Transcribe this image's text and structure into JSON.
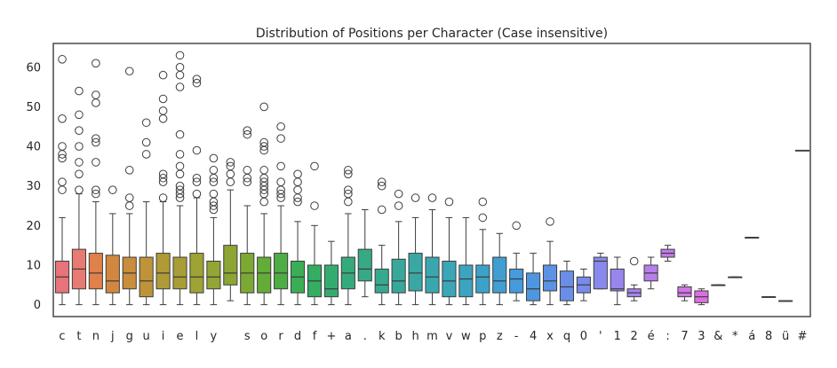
{
  "chart_data": {
    "type": "box",
    "title": "Distribution of Positions per Character (Case insensitive)",
    "xlabel": "",
    "ylabel": "",
    "ylim": [
      -3,
      66
    ],
    "yticks": [
      0,
      10,
      20,
      30,
      40,
      50,
      60
    ],
    "grid": false,
    "legend": "none",
    "categories": [
      "c",
      "t",
      "n",
      "j",
      "g",
      "u",
      "i",
      "e",
      "l",
      "y",
      " ",
      "s",
      "o",
      "r",
      "d",
      "f",
      "+",
      "a",
      ".",
      "k",
      "b",
      "h",
      "m",
      "v",
      "w",
      "p",
      "z",
      "-",
      "4",
      "x",
      "q",
      "0",
      "'",
      "1",
      "2",
      "é",
      ":",
      "7",
      "3",
      "&",
      "*",
      "á",
      "8",
      "ü",
      "#"
    ],
    "boxes": [
      {
        "min": 0,
        "q1": 3,
        "median": 7,
        "q3": 11,
        "max": 22,
        "outliers": [
          29,
          31,
          37,
          38,
          40,
          47,
          62
        ],
        "color": "#e8737a"
      },
      {
        "min": 0,
        "q1": 4,
        "median": 9,
        "q3": 14,
        "max": 28,
        "outliers": [
          29,
          33,
          36,
          40,
          44,
          48,
          54
        ],
        "color": "#e77a72"
      },
      {
        "min": 0,
        "q1": 4,
        "median": 8,
        "q3": 13,
        "max": 26,
        "outliers": [
          28,
          29,
          36,
          41,
          42,
          51,
          53,
          61
        ],
        "color": "#e0804a"
      },
      {
        "min": 0,
        "q1": 3,
        "median": 6,
        "q3": 12.5,
        "max": 23,
        "outliers": [
          29
        ],
        "color": "#d2873e"
      },
      {
        "min": 0,
        "q1": 4,
        "median": 8,
        "q3": 12,
        "max": 23,
        "outliers": [
          25,
          27,
          34,
          59
        ],
        "color": "#c98d3b"
      },
      {
        "min": 0,
        "q1": 2,
        "median": 6,
        "q3": 12,
        "max": 26,
        "outliers": [
          38,
          41,
          46
        ],
        "color": "#bf9338"
      },
      {
        "min": 0,
        "q1": 4,
        "median": 8,
        "q3": 13,
        "max": 26,
        "outliers": [
          27,
          31,
          32,
          33,
          47,
          49,
          52,
          58
        ],
        "color": "#b09a36"
      },
      {
        "min": 0,
        "q1": 4,
        "median": 7,
        "q3": 12,
        "max": 25,
        "outliers": [
          27,
          28,
          29,
          30,
          33,
          35,
          38,
          43,
          55,
          58,
          60,
          63
        ],
        "color": "#a89e35"
      },
      {
        "min": 0,
        "q1": 3,
        "median": 7,
        "q3": 13,
        "max": 27,
        "outliers": [
          28,
          31,
          32,
          39,
          56,
          57
        ],
        "color": "#9fa235"
      },
      {
        "min": 0,
        "q1": 4,
        "median": 7,
        "q3": 11,
        "max": 22,
        "outliers": [
          24,
          25,
          26,
          28,
          31,
          32,
          34,
          37
        ],
        "color": "#94a535"
      },
      {
        "min": 1,
        "q1": 5,
        "median": 8,
        "q3": 15,
        "max": 29,
        "outliers": [
          31,
          33,
          35,
          36
        ],
        "color": "#8ca534"
      },
      {
        "min": 0,
        "q1": 3,
        "median": 8,
        "q3": 13,
        "max": 25,
        "outliers": [
          31,
          32,
          34,
          43,
          44
        ],
        "color": "#7ca934"
      },
      {
        "min": 0,
        "q1": 3,
        "median": 8,
        "q3": 12,
        "max": 23,
        "outliers": [
          26,
          28,
          29,
          30,
          31,
          32,
          34,
          39,
          40,
          41,
          50
        ],
        "color": "#64ac38"
      },
      {
        "min": 0,
        "q1": 4,
        "median": 8,
        "q3": 13,
        "max": 25,
        "outliers": [
          27,
          28,
          29,
          31,
          35,
          42,
          45
        ],
        "color": "#4eae45"
      },
      {
        "min": 0,
        "q1": 3,
        "median": 7,
        "q3": 11,
        "max": 21,
        "outliers": [
          26,
          27,
          29,
          31,
          33
        ],
        "color": "#3aae55"
      },
      {
        "min": 0,
        "q1": 2,
        "median": 6,
        "q3": 10,
        "max": 20,
        "outliers": [
          25,
          35
        ],
        "color": "#33ad62"
      },
      {
        "min": 0,
        "q1": 2,
        "median": 4,
        "q3": 10,
        "max": 16,
        "outliers": [],
        "color": "#34ac70"
      },
      {
        "min": 0,
        "q1": 4,
        "median": 8,
        "q3": 12,
        "max": 23,
        "outliers": [
          26,
          28,
          29,
          33,
          34
        ],
        "color": "#35ab7b"
      },
      {
        "min": 2,
        "q1": 6,
        "median": 9,
        "q3": 14,
        "max": 24,
        "outliers": [],
        "color": "#36aa86"
      },
      {
        "min": 0,
        "q1": 3,
        "median": 5,
        "q3": 9,
        "max": 15,
        "outliers": [
          24,
          30,
          31
        ],
        "color": "#37a991"
      },
      {
        "min": 0,
        "q1": 3,
        "median": 6,
        "q3": 11.5,
        "max": 21,
        "outliers": [
          25,
          28
        ],
        "color": "#38a89b"
      },
      {
        "min": 0,
        "q1": 3.5,
        "median": 8,
        "q3": 13,
        "max": 22,
        "outliers": [
          27
        ],
        "color": "#39a8a5"
      },
      {
        "min": 0,
        "q1": 3,
        "median": 7,
        "q3": 12,
        "max": 24,
        "outliers": [
          27
        ],
        "color": "#3aa7ae"
      },
      {
        "min": 0,
        "q1": 2,
        "median": 6,
        "q3": 11,
        "max": 22,
        "outliers": [
          26
        ],
        "color": "#3ba6b8"
      },
      {
        "min": 0,
        "q1": 2,
        "median": 6.5,
        "q3": 10,
        "max": 22,
        "outliers": [],
        "color": "#3ca4c0"
      },
      {
        "min": 0,
        "q1": 3,
        "median": 7,
        "q3": 10,
        "max": 19,
        "outliers": [
          22,
          26
        ],
        "color": "#3da2c9"
      },
      {
        "min": 0,
        "q1": 3,
        "median": 6,
        "q3": 12,
        "max": 18,
        "outliers": [],
        "color": "#3f9fd3"
      },
      {
        "min": 1,
        "q1": 3,
        "median": 6.5,
        "q3": 9,
        "max": 13,
        "outliers": [
          20
        ],
        "color": "#459bdb"
      },
      {
        "min": 0,
        "q1": 1,
        "median": 4,
        "q3": 8,
        "max": 13,
        "outliers": [],
        "color": "#4f96e0"
      },
      {
        "min": 0,
        "q1": 3.5,
        "median": 6,
        "q3": 10,
        "max": 16,
        "outliers": [
          21
        ],
        "color": "#5c92e4"
      },
      {
        "min": 0,
        "q1": 1,
        "median": 4.5,
        "q3": 8.5,
        "max": 11,
        "outliers": [],
        "color": "#6a8ee8"
      },
      {
        "min": 1,
        "q1": 3,
        "median": 5,
        "q3": 7,
        "max": 9,
        "outliers": [],
        "color": "#788beb"
      },
      {
        "min": 4,
        "q1": 4,
        "median": 11,
        "q3": 12,
        "max": 13,
        "outliers": [],
        "color": "#8988ec"
      },
      {
        "min": 0,
        "q1": 3.5,
        "median": 4,
        "q3": 9,
        "max": 12,
        "outliers": [],
        "color": "#9986ed"
      },
      {
        "min": 1,
        "q1": 2,
        "median": 3,
        "q3": 4,
        "max": 5,
        "outliers": [
          11
        ],
        "color": "#a684ec"
      },
      {
        "min": 4,
        "q1": 6,
        "median": 8,
        "q3": 10,
        "max": 12,
        "outliers": [],
        "color": "#b67fea"
      },
      {
        "min": 11,
        "q1": 12,
        "median": 13,
        "q3": 14,
        "max": 15,
        "outliers": [],
        "color": "#c47ae8"
      },
      {
        "min": 1,
        "q1": 2,
        "median": 3,
        "q3": 4.5,
        "max": 5,
        "outliers": [],
        "color": "#d175e5"
      },
      {
        "min": 0,
        "q1": 0.5,
        "median": 2,
        "q3": 3.5,
        "max": 4,
        "outliers": [],
        "color": "#dc6fdf"
      },
      {
        "min": 5,
        "q1": 5,
        "median": 5,
        "q3": 5,
        "max": 5,
        "outliers": [],
        "color": "#e06ad4"
      },
      {
        "min": 7,
        "q1": 7,
        "median": 7,
        "q3": 7,
        "max": 7,
        "outliers": [],
        "color": "#e267c8"
      },
      {
        "min": 17,
        "q1": 17,
        "median": 17,
        "q3": 17,
        "max": 17,
        "outliers": [],
        "color": "#e465bc"
      },
      {
        "min": 2,
        "q1": 2,
        "median": 2,
        "q3": 2,
        "max": 2,
        "outliers": [],
        "color": "#e666ae"
      },
      {
        "min": 1,
        "q1": 1,
        "median": 1,
        "q3": 1,
        "max": 1,
        "outliers": [],
        "color": "#e7689e"
      },
      {
        "min": 39,
        "q1": 39,
        "median": 39,
        "q3": 39,
        "max": 39,
        "outliers": [],
        "color": "#e86b8e"
      }
    ]
  }
}
